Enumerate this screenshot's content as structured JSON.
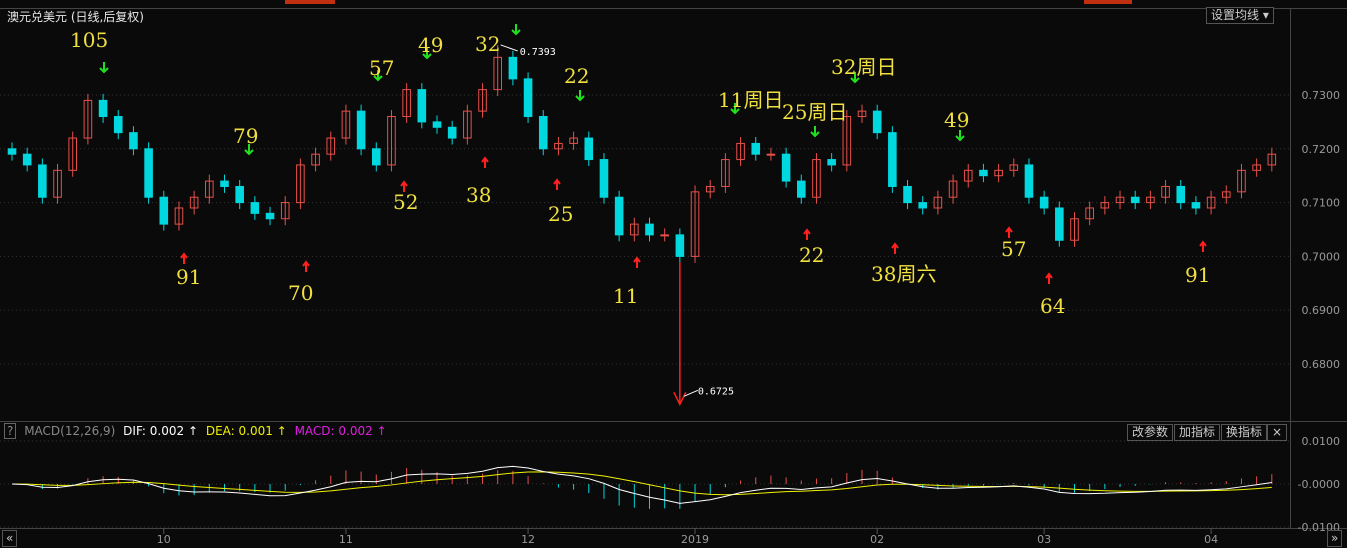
{
  "header": {
    "title": "澳元兑美元 (日线,后复权)",
    "ma_setting_button": "设置均线 ▾"
  },
  "colors": {
    "up": "#e8504a",
    "down": "#00d8e0",
    "dif": "#ffffff",
    "dea": "#f0f000",
    "macd": "#e020e0",
    "annotation": "#f0e040",
    "arrow_up": "#ff2020",
    "arrow_down": "#20e020"
  },
  "macd_panel": {
    "help": "?",
    "name": "MACD(12,26,9)",
    "dif": "DIF: 0.002 ↑",
    "dea": "DEA: 0.001 ↑",
    "macd": "MACD: 0.002 ↑",
    "buttons": [
      "改参数",
      "加指标",
      "换指标",
      "×"
    ]
  },
  "scroll": {
    "left": "«",
    "right": "»"
  },
  "chart_data": {
    "type": "candlestick",
    "symbol": "澳元兑美元",
    "closes": [
      0.719,
      0.717,
      0.711,
      0.716,
      0.722,
      0.729,
      0.726,
      0.723,
      0.72,
      0.711,
      0.706,
      0.709,
      0.711,
      0.714,
      0.713,
      0.71,
      0.708,
      0.707,
      0.71,
      0.717,
      0.719,
      0.722,
      0.727,
      0.72,
      0.717,
      0.726,
      0.731,
      0.725,
      0.724,
      0.722,
      0.727,
      0.731,
      0.737,
      0.733,
      0.726,
      0.72,
      0.721,
      0.722,
      0.718,
      0.711,
      0.704,
      0.706,
      0.704,
      0.704,
      0.7,
      0.712,
      0.713,
      0.718,
      0.721,
      0.719,
      0.719,
      0.714,
      0.711,
      0.718,
      0.717,
      0.726,
      0.727,
      0.723,
      0.713,
      0.71,
      0.709,
      0.711,
      0.714,
      0.716,
      0.715,
      0.716,
      0.717,
      0.711,
      0.709,
      0.703,
      0.707,
      0.709,
      0.71,
      0.711,
      0.71,
      0.711,
      0.713,
      0.71,
      0.709,
      0.711,
      0.712,
      0.716,
      0.717,
      0.719
    ],
    "first_open": 0.72,
    "y_ticks": [
      "0.7300",
      "0.7200",
      "0.7100",
      "0.7000",
      "0.6900",
      "0.6800"
    ],
    "y_tick_values": [
      0.73,
      0.72,
      0.71,
      0.7,
      0.69,
      0.68
    ],
    "macd_ticks": [
      "0.0100",
      "-0.0000",
      "-0.0100"
    ],
    "macd_tick_values": [
      0.01,
      0,
      -0.01
    ],
    "x_ticks": [
      {
        "label": "10",
        "index": 10
      },
      {
        "label": "11",
        "index": 22
      },
      {
        "label": "12",
        "index": 34
      },
      {
        "label": "2019",
        "index": 45
      },
      {
        "label": "02",
        "index": 57
      },
      {
        "label": "03",
        "index": 68
      },
      {
        "label": "04",
        "index": 79
      }
    ],
    "max_marker": {
      "label": "0.7393",
      "value": 0.7393,
      "index": 32
    },
    "min_marker": {
      "label": "0.6725",
      "value": 0.6725,
      "index": 44
    },
    "annotations": [
      "105",
      "91",
      "79",
      "70",
      "57",
      "52",
      "49",
      "38",
      "32",
      "25",
      "22",
      "11",
      "11周日",
      "25周日",
      "22",
      "32周日",
      "38周六",
      "49",
      "57",
      "64",
      "91"
    ]
  }
}
